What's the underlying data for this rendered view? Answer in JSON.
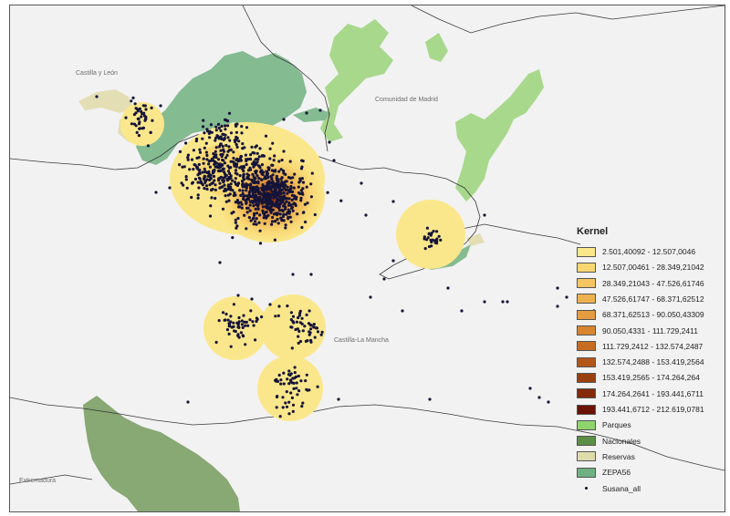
{
  "labels": {
    "castilla_leon": "Castilla y León",
    "madrid": "Comunidad de Madrid",
    "castilla_mancha": "Castilla-La Mancha",
    "extremadura": "Extremadura"
  },
  "legend": {
    "title": "Kernel",
    "kernel_classes": [
      {
        "label": "2.501,40092 - 12.507,0046",
        "color": "#fbe78b"
      },
      {
        "label": "12.507,00461 - 28.349,21042",
        "color": "#f8d773"
      },
      {
        "label": "28.349,21043 - 47.526,61746",
        "color": "#f4c560"
      },
      {
        "label": "47.526,61747 - 68.371,62512",
        "color": "#eeb14f"
      },
      {
        "label": "68.371,62513 - 90.050,43309",
        "color": "#e59b3f"
      },
      {
        "label": "90.050,4331 - 111.729,2411",
        "color": "#d9842f"
      },
      {
        "label": "111.729,2412 - 132.574,2487",
        "color": "#c86c22"
      },
      {
        "label": "132.574,2488 - 153.419,2564",
        "color": "#b25619"
      },
      {
        "label": "153.419,2565 - 174.264,264",
        "color": "#9a4010"
      },
      {
        "label": "174.264,2641 - 193.441,6711",
        "color": "#822a09"
      },
      {
        "label": "193.441,6712 - 212.619,0781",
        "color": "#6b1305"
      }
    ],
    "layers": [
      {
        "label": "Parques",
        "color": "#8fd36d"
      },
      {
        "label": "Nacionales",
        "color": "#5c8f45"
      },
      {
        "label": "Reservas",
        "color": "#dedcab"
      },
      {
        "label": "ZEPA56",
        "color": "#6fb182"
      }
    ],
    "points_label": "Susana_all"
  },
  "colors": {
    "background": "#f2f2f2",
    "parques": "#a8d88c",
    "nacionales": "#88a874",
    "reservas": "#e3deb4",
    "zepa": "#84bb91",
    "boundary": "#3a3a3a",
    "points": "#14143a"
  }
}
